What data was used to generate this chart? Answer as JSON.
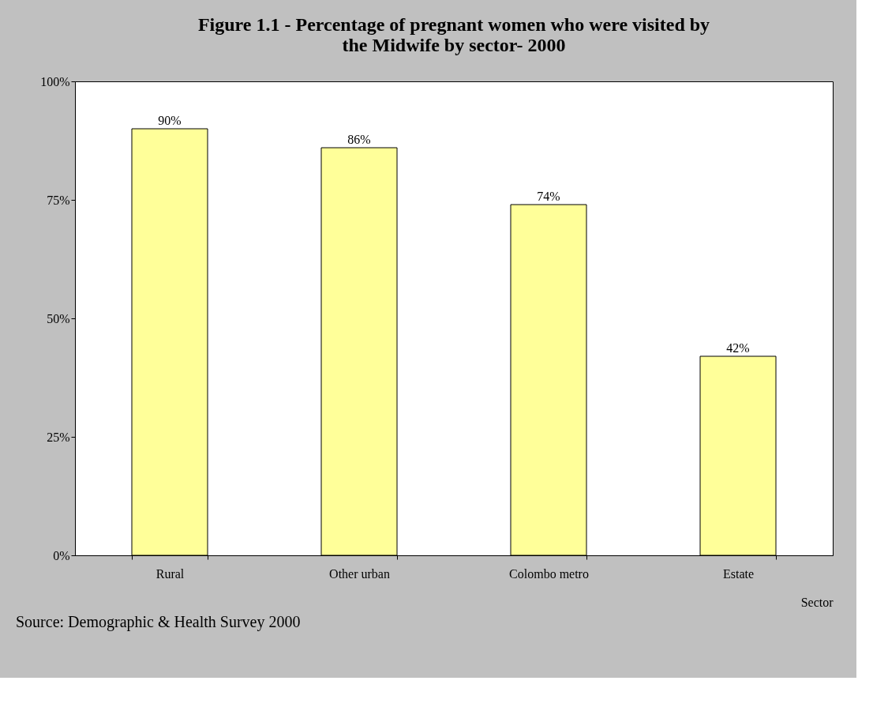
{
  "chart_data": {
    "type": "bar",
    "title": "Figure 1.1 - Percentage of pregnant women who were  visited by the Midwife by sector- 2000",
    "xlabel": "Sector",
    "categories": [
      "Rural",
      "Other urban",
      "Colombo metro",
      "Estate"
    ],
    "values": [
      90,
      86,
      74,
      42
    ],
    "value_labels": [
      "90%",
      "86%",
      "74%",
      "42%"
    ],
    "color": "#ffff99",
    "ylim": [
      0,
      100
    ],
    "yticks": [
      {
        "value": 0,
        "label": "0%"
      },
      {
        "value": 25,
        "label": "25%"
      },
      {
        "value": 50,
        "label": "50%"
      },
      {
        "value": 75,
        "label": "75%"
      },
      {
        "value": 100,
        "label": "100%"
      }
    ],
    "grid": false,
    "annotations": [
      "Source: Demographic & Health Survey 2000"
    ]
  }
}
